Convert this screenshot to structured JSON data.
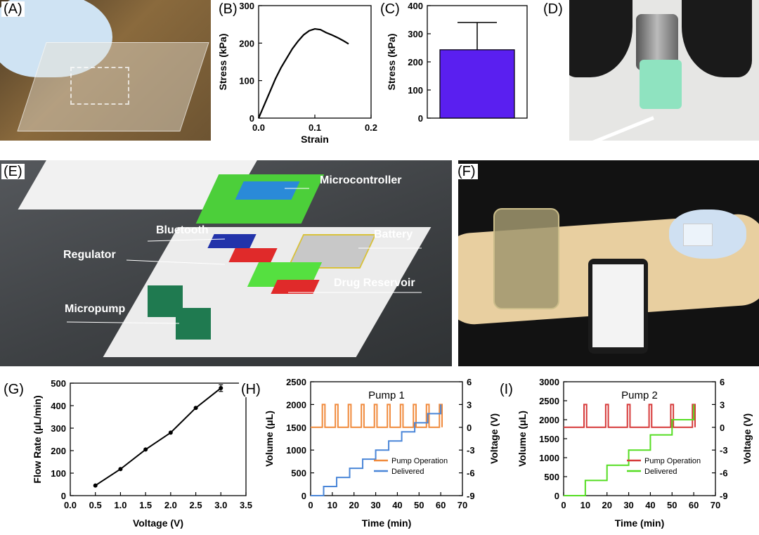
{
  "panel_labels": {
    "A": "(A)",
    "B": "(B)",
    "C": "(C)",
    "D": "(D)",
    "E": "(E)",
    "F": "(F)",
    "G": "(G)",
    "H": "(H)",
    "I": "(I)"
  },
  "diagram_labels": {
    "microcontroller": "Microcontroller",
    "bluetooth": "Bluetooth",
    "battery": "Battery",
    "regulator": "Regulator",
    "drug_reservoir": "Drug Reservoir",
    "micropump": "Micropump"
  },
  "colors": {
    "bar": "#5a1ff0",
    "pump1_operation": "#f08a3c",
    "pump1_delivered": "#4a86d8",
    "pump2_operation": "#d63a3a",
    "pump2_delivered": "#55dd22"
  },
  "chart_data": [
    {
      "id": "B",
      "type": "line",
      "xlabel": "Strain",
      "ylabel": "Stress (kPa)",
      "xlim": [
        0,
        0.2
      ],
      "ylim": [
        0,
        300
      ],
      "xticks": [
        "0.0",
        "0.1",
        "0.2"
      ],
      "yticks": [
        "0",
        "100",
        "200",
        "300"
      ],
      "series": [
        {
          "x": [
            0,
            0.01,
            0.02,
            0.03,
            0.04,
            0.05,
            0.06,
            0.07,
            0.08,
            0.09,
            0.1,
            0.11,
            0.12,
            0.13,
            0.14,
            0.15,
            0.16
          ],
          "y": [
            0,
            35,
            70,
            105,
            135,
            160,
            185,
            205,
            222,
            233,
            238,
            236,
            228,
            222,
            215,
            207,
            198
          ]
        }
      ]
    },
    {
      "id": "C",
      "type": "bar",
      "ylabel": "Stress (kPa)",
      "ylim": [
        0,
        400
      ],
      "yticks": [
        "0",
        "100",
        "200",
        "300",
        "400"
      ],
      "values": [
        243
      ],
      "error": [
        97
      ]
    },
    {
      "id": "G",
      "type": "line",
      "xlabel": "Voltage (V)",
      "ylabel": "Flow Rate (μL/min)",
      "xlim": [
        0,
        3.5
      ],
      "ylim": [
        0,
        500
      ],
      "xticks": [
        "0.0",
        "0.5",
        "1.0",
        "1.5",
        "2.0",
        "2.5",
        "3.0",
        "3.5"
      ],
      "yticks": [
        "0",
        "100",
        "200",
        "300",
        "400",
        "500"
      ],
      "series": [
        {
          "x": [
            0.5,
            1.0,
            1.5,
            2.0,
            2.5,
            3.0
          ],
          "y": [
            45,
            118,
            205,
            280,
            390,
            478
          ],
          "error": [
            0,
            0,
            0,
            0,
            0,
            15
          ]
        }
      ]
    },
    {
      "id": "H",
      "type": "line",
      "title": "Pump 1",
      "xlabel": "Time (min)",
      "ylabel": "Volume (μL)",
      "y2label": "Voltage (V)",
      "xlim": [
        0,
        70
      ],
      "ylim": [
        0,
        2500
      ],
      "y2lim": [
        -9,
        6
      ],
      "xticks": [
        "0",
        "10",
        "20",
        "30",
        "40",
        "50",
        "60",
        "70"
      ],
      "yticks": [
        "0",
        "500",
        "1000",
        "1500",
        "2000",
        "2500"
      ],
      "y2ticks": [
        "-9",
        "-6",
        "-3",
        "0",
        "3",
        "6"
      ],
      "legend": [
        "Pump Operation",
        "Delivered"
      ],
      "pulse_times": [
        6,
        12,
        18,
        24,
        30,
        36,
        42,
        48,
        54,
        60
      ],
      "pulse_high": 3,
      "pulse_low": 0,
      "delivered_steps": [
        0,
        200,
        400,
        600,
        800,
        1000,
        1200,
        1400,
        1600,
        1800,
        2000
      ]
    },
    {
      "id": "I",
      "type": "line",
      "title": "Pump 2",
      "xlabel": "Time (min)",
      "ylabel": "Volume (μL)",
      "y2label": "Voltage (V)",
      "xlim": [
        0,
        70
      ],
      "ylim": [
        0,
        3000
      ],
      "y2lim": [
        -9,
        6
      ],
      "xticks": [
        "0",
        "10",
        "20",
        "30",
        "40",
        "50",
        "60",
        "70"
      ],
      "yticks": [
        "0",
        "500",
        "1000",
        "1500",
        "2000",
        "2500",
        "3000"
      ],
      "y2ticks": [
        "-9",
        "-6",
        "-3",
        "0",
        "3",
        "6"
      ],
      "legend": [
        "Pump Operation",
        "Delivered"
      ],
      "pulse_times": [
        10,
        20,
        30,
        40,
        50,
        60
      ],
      "pulse_high": 3,
      "pulse_low": 0,
      "delivered_steps": [
        0,
        400,
        800,
        1200,
        1600,
        2000,
        2400
      ]
    }
  ]
}
